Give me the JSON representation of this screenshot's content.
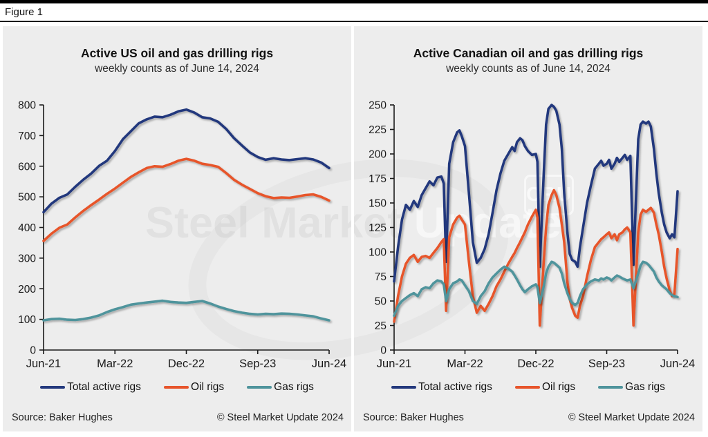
{
  "figure_label": "Figure 1",
  "source": "Source: Baker Hughes",
  "copyright": "© Steel Market Update 2024",
  "watermark": {
    "part1": "Steel Market ",
    "part2": "Update",
    "badge": "CRU"
  },
  "colors": {
    "navy": "#24397d",
    "orange": "#e7552c",
    "teal": "#4f949c",
    "panel_bg": "#ededed",
    "axis": "#1a1a1a"
  },
  "legend": [
    {
      "label": "Total active rigs",
      "color": "#24397d"
    },
    {
      "label": "Oil rigs",
      "color": "#e7552c"
    },
    {
      "label": "Gas rigs",
      "color": "#4f949c"
    }
  ],
  "chart_data": [
    {
      "type": "line",
      "title": "Active US oil and gas drilling rigs",
      "subtitle": "weekly counts as of June 14, 2024",
      "x_unit": "months since Jun-2021",
      "x_ticks": [
        {
          "pos": 0,
          "label": "Jun-21"
        },
        {
          "pos": 9,
          "label": "Mar-22"
        },
        {
          "pos": 18,
          "label": "Dec-22"
        },
        {
          "pos": 27,
          "label": "Sep-23"
        },
        {
          "pos": 36,
          "label": "Jun-24"
        }
      ],
      "ylim": [
        0,
        800
      ],
      "y_step": 100,
      "grid": false,
      "legend_position": "bottom",
      "series": [
        {
          "name": "Total active rigs",
          "color": "#24397d",
          "x": [
            0,
            1,
            2,
            3,
            4,
            5,
            6,
            7,
            8,
            9,
            10,
            11,
            12,
            13,
            14,
            15,
            16,
            17,
            18,
            19,
            20,
            21,
            22,
            23,
            24,
            25,
            26,
            27,
            28,
            29,
            30,
            31,
            32,
            33,
            34,
            35,
            36
          ],
          "values": [
            450,
            478,
            497,
            508,
            533,
            556,
            576,
            601,
            618,
            650,
            688,
            714,
            740,
            753,
            762,
            760,
            768,
            779,
            785,
            775,
            760,
            756,
            745,
            722,
            692,
            668,
            645,
            630,
            621,
            626,
            622,
            620,
            623,
            626,
            622,
            612,
            594
          ]
        },
        {
          "name": "Oil rigs",
          "color": "#e7552c",
          "x": [
            0,
            1,
            2,
            3,
            4,
            5,
            6,
            7,
            8,
            9,
            10,
            11,
            12,
            13,
            14,
            15,
            16,
            17,
            18,
            19,
            20,
            21,
            22,
            23,
            24,
            25,
            26,
            27,
            28,
            29,
            30,
            31,
            32,
            33,
            34,
            35,
            36
          ],
          "values": [
            356,
            380,
            399,
            410,
            433,
            454,
            473,
            491,
            510,
            527,
            546,
            565,
            580,
            594,
            600,
            598,
            607,
            618,
            624,
            618,
            608,
            604,
            598,
            578,
            556,
            540,
            526,
            512,
            502,
            496,
            498,
            497,
            501,
            506,
            508,
            500,
            488
          ]
        },
        {
          "name": "Gas rigs",
          "color": "#4f949c",
          "x": [
            0,
            1,
            2,
            3,
            4,
            5,
            6,
            7,
            8,
            9,
            10,
            11,
            12,
            13,
            14,
            15,
            16,
            17,
            18,
            19,
            20,
            21,
            22,
            23,
            24,
            25,
            26,
            27,
            28,
            29,
            30,
            31,
            32,
            33,
            34,
            35,
            36
          ],
          "values": [
            97,
            101,
            102,
            99,
            98,
            101,
            106,
            113,
            124,
            133,
            140,
            148,
            152,
            155,
            158,
            161,
            157,
            155,
            154,
            157,
            160,
            152,
            142,
            134,
            127,
            122,
            118,
            116,
            118,
            117,
            119,
            118,
            116,
            113,
            110,
            103,
            97
          ]
        }
      ]
    },
    {
      "type": "line",
      "title": "Active Canadian oil and gas drilling rigs",
      "subtitle": "weekly counts as of June 14, 2024",
      "x_unit": "months since Jun-2021",
      "x_ticks": [
        {
          "pos": 0,
          "label": "Jun-21"
        },
        {
          "pos": 9,
          "label": "Mar-22"
        },
        {
          "pos": 18,
          "label": "Dec-22"
        },
        {
          "pos": 27,
          "label": "Sep-23"
        },
        {
          "pos": 36,
          "label": "Jun-24"
        }
      ],
      "ylim": [
        0,
        250
      ],
      "y_step": 25,
      "grid": false,
      "legend_position": "bottom",
      "series": [
        {
          "name": "Total active rigs",
          "color": "#24397d",
          "x": [
            0,
            0.5,
            1,
            1.5,
            2,
            2.5,
            3,
            3.5,
            4,
            4.5,
            5,
            5.5,
            6,
            6.3,
            6.6,
            7,
            7.5,
            8,
            8.3,
            8.6,
            9,
            9.5,
            10,
            10.5,
            11,
            11.5,
            12,
            12.5,
            13,
            13.5,
            14,
            14.5,
            15,
            15.3,
            15.6,
            16,
            16.3,
            16.6,
            17,
            17.5,
            18,
            18.2,
            18.5,
            19,
            19.3,
            19.6,
            20,
            20.3,
            20.6,
            21,
            21.3,
            21.6,
            22,
            22.3,
            22.6,
            23,
            23.3,
            23.6,
            24,
            24.5,
            25,
            25.5,
            26,
            26.3,
            26.6,
            27,
            27.3,
            27.6,
            28,
            28.3,
            28.6,
            29,
            29.3,
            29.6,
            30,
            30.4,
            31,
            31.3,
            31.6,
            32,
            32.3,
            32.6,
            33,
            33.3,
            33.6,
            34,
            34.3,
            34.6,
            35,
            35.3,
            35.6,
            36
          ],
          "values": [
            70,
            105,
            133,
            148,
            143,
            152,
            146,
            158,
            165,
            172,
            168,
            176,
            177,
            170,
            90,
            190,
            212,
            222,
            224,
            218,
            208,
            160,
            110,
            89,
            94,
            103,
            118,
            140,
            163,
            180,
            193,
            200,
            207,
            203,
            212,
            216,
            214,
            208,
            203,
            199,
            200,
            192,
            85,
            180,
            230,
            246,
            250,
            248,
            244,
            230,
            205,
            160,
            120,
            98,
            92,
            90,
            85,
            105,
            125,
            150,
            168,
            185,
            190,
            193,
            188,
            190,
            194,
            185,
            190,
            196,
            192,
            196,
            199,
            194,
            198,
            87,
            215,
            230,
            233,
            231,
            233,
            228,
            205,
            180,
            160,
            140,
            128,
            120,
            114,
            118,
            115,
            162
          ]
        },
        {
          "name": "Oil rigs",
          "color": "#e7552c",
          "x": [
            0,
            0.5,
            1,
            1.5,
            2,
            2.5,
            3,
            3.5,
            4,
            4.5,
            5,
            5.5,
            6,
            6.3,
            6.6,
            7,
            7.5,
            8,
            8.3,
            8.6,
            9,
            9.5,
            10,
            10.5,
            11,
            11.5,
            12,
            12.5,
            13,
            13.5,
            14,
            14.5,
            15,
            15.3,
            15.6,
            16,
            16.3,
            16.6,
            17,
            17.5,
            18,
            18.2,
            18.5,
            19,
            19.3,
            19.6,
            20,
            20.3,
            20.6,
            21,
            21.3,
            21.6,
            22,
            22.3,
            22.6,
            23,
            23.3,
            23.6,
            24,
            24.5,
            25,
            25.5,
            26,
            26.3,
            26.6,
            27,
            27.3,
            27.6,
            28,
            28.3,
            28.6,
            29,
            29.3,
            29.6,
            30,
            30.4,
            31,
            31.3,
            31.6,
            32,
            32.3,
            32.6,
            33,
            33.3,
            33.6,
            34,
            34.3,
            34.6,
            35,
            35.3,
            35.6,
            36
          ],
          "values": [
            29,
            55,
            75,
            88,
            94,
            97,
            90,
            95,
            96,
            94,
            99,
            104,
            110,
            113,
            40,
            115,
            128,
            135,
            137,
            133,
            128,
            90,
            55,
            38,
            45,
            40,
            47,
            55,
            65,
            72,
            80,
            88,
            95,
            99,
            104,
            110,
            115,
            120,
            128,
            136,
            143,
            135,
            25,
            90,
            125,
            148,
            158,
            163,
            158,
            145,
            128,
            110,
            70,
            52,
            43,
            35,
            33,
            45,
            55,
            75,
            92,
            105,
            110,
            113,
            115,
            118,
            120,
            114,
            118,
            112,
            118,
            120,
            123,
            125,
            120,
            25,
            120,
            138,
            143,
            141,
            143,
            145,
            140,
            128,
            118,
            100,
            85,
            73,
            61,
            55,
            57,
            103
          ]
        },
        {
          "name": "Gas rigs",
          "color": "#4f949c",
          "x": [
            0,
            0.5,
            1,
            1.5,
            2,
            2.5,
            3,
            3.5,
            4,
            4.5,
            5,
            5.5,
            6,
            6.3,
            6.6,
            7,
            7.5,
            8,
            8.3,
            8.6,
            9,
            9.5,
            10,
            10.5,
            11,
            11.5,
            12,
            12.5,
            13,
            13.5,
            14,
            14.5,
            15,
            15.3,
            15.6,
            16,
            16.3,
            16.6,
            17,
            17.5,
            18,
            18.2,
            18.5,
            19,
            19.3,
            19.6,
            20,
            20.3,
            20.6,
            21,
            21.3,
            21.6,
            22,
            22.3,
            22.6,
            23,
            23.3,
            23.6,
            24,
            24.5,
            25,
            25.5,
            26,
            26.3,
            26.6,
            27,
            27.3,
            27.6,
            28,
            28.3,
            28.6,
            29,
            29.3,
            29.6,
            30,
            30.4,
            31,
            31.3,
            31.6,
            32,
            32.3,
            32.6,
            33,
            33.3,
            33.6,
            34,
            34.3,
            34.6,
            35,
            35.3,
            35.6,
            36
          ],
          "values": [
            35,
            45,
            50,
            53,
            56,
            58,
            55,
            62,
            64,
            63,
            68,
            71,
            70,
            67,
            50,
            62,
            68,
            70,
            72,
            71,
            66,
            60,
            50,
            47,
            55,
            60,
            68,
            74,
            78,
            82,
            85,
            83,
            80,
            76,
            72,
            66,
            62,
            59,
            62,
            65,
            67,
            64,
            48,
            65,
            78,
            85,
            90,
            89,
            87,
            84,
            78,
            68,
            58,
            52,
            48,
            46,
            48,
            55,
            62,
            67,
            70,
            72,
            71,
            73,
            72,
            74,
            73,
            71,
            74,
            76,
            75,
            73,
            72,
            71,
            72,
            63,
            78,
            86,
            90,
            89,
            87,
            84,
            80,
            74,
            70,
            66,
            64,
            62,
            58,
            56,
            55,
            54
          ]
        }
      ]
    }
  ]
}
